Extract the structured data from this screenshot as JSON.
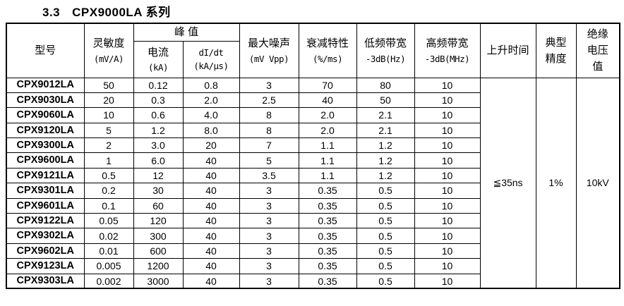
{
  "section": {
    "number": "3.3",
    "title": "CPX9000LA 系列"
  },
  "table": {
    "header": {
      "model": "型号",
      "sensitivity": {
        "name": "灵敏度",
        "unit": "(mV/A)"
      },
      "peak_group": "峰 值",
      "current": {
        "name": "电流",
        "unit": "(kA)"
      },
      "didt": {
        "name": "dI/dt",
        "unit": "(kA/μs)"
      },
      "max_noise": {
        "name": "最大噪声",
        "unit": "(mV Vpp)"
      },
      "attenuation": {
        "name": "衰减特性",
        "unit": "(%/ms)"
      },
      "low_bandwidth": {
        "name": "低频带宽",
        "unit": "-3dB(Hz)"
      },
      "high_bandwidth": {
        "name": "高频带宽",
        "unit": "-3dB(MHz)"
      },
      "rise_time": "上升时间",
      "typical_accuracy": {
        "line1": "典型",
        "line2": "精度"
      },
      "insulation_voltage": {
        "line1": "绝缘",
        "line2": "电压",
        "line3": "值"
      }
    },
    "rows": [
      [
        "CPX9012LA",
        "50",
        "0.12",
        "0.8",
        "3",
        "70",
        "80",
        "10"
      ],
      [
        "CPX9030LA",
        "20",
        "0.3",
        "2.0",
        "2.5",
        "40",
        "50",
        "10"
      ],
      [
        "CPX9060LA",
        "10",
        "0.6",
        "4.0",
        "8",
        "2.0",
        "2.1",
        "10"
      ],
      [
        "CPX9120LA",
        "5",
        "1.2",
        "8.0",
        "8",
        "2.0",
        "2.1",
        "10"
      ],
      [
        "CPX9300LA",
        "2",
        "3.0",
        "20",
        "7",
        "1.1",
        "1.2",
        "10"
      ],
      [
        "CPX9600LA",
        "1",
        "6.0",
        "40",
        "5",
        "1.1",
        "1.2",
        "10"
      ],
      [
        "CPX9121LA",
        "0.5",
        "12",
        "40",
        "3.5",
        "1.1",
        "1.2",
        "10"
      ],
      [
        "CPX9301LA",
        "0.2",
        "30",
        "40",
        "3",
        "0.35",
        "0.5",
        "10"
      ],
      [
        "CPX9601LA",
        "0.1",
        "60",
        "40",
        "3",
        "0.35",
        "0.5",
        "10"
      ],
      [
        "CPX9122LA",
        "0.05",
        "120",
        "40",
        "3",
        "0.35",
        "0.5",
        "10"
      ],
      [
        "CPX9302LA",
        "0.02",
        "300",
        "40",
        "3",
        "0.35",
        "0.5",
        "10"
      ],
      [
        "CPX9602LA",
        "0.01",
        "600",
        "40",
        "3",
        "0.35",
        "0.5",
        "10"
      ],
      [
        "CPX9123LA",
        "0.005",
        "1200",
        "40",
        "3",
        "0.35",
        "0.5",
        "10"
      ],
      [
        "CPX9303LA",
        "0.002",
        "3000",
        "40",
        "3",
        "0.35",
        "0.5",
        "10"
      ]
    ],
    "merged_values": {
      "rise_time": "≦35ns",
      "typical_accuracy": "1%",
      "insulation_voltage": "10kV"
    }
  },
  "colors": {
    "text": "#000000",
    "border": "#000000",
    "background": "#ffffff"
  }
}
